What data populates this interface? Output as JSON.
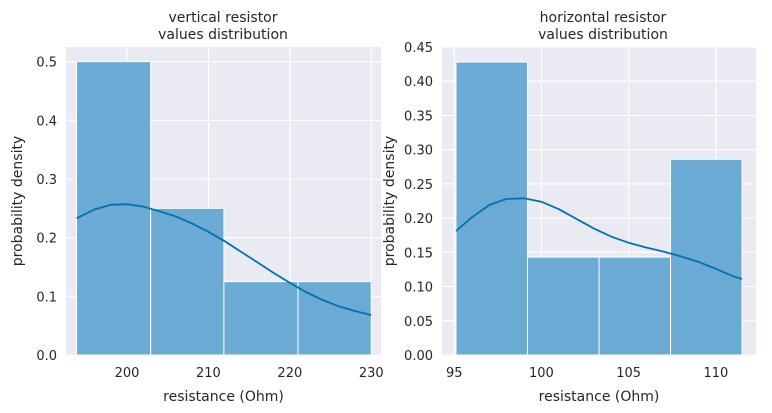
{
  "chart_data": [
    {
      "type": "bar",
      "title": [
        "vertical resistor",
        "values distribution"
      ],
      "xlabel": "resistance (Ohm)",
      "ylabel": "probability density",
      "xlim": [
        192.5,
        231.2
      ],
      "ylim": [
        0,
        0.525
      ],
      "xticks": [
        200,
        210,
        220,
        230
      ],
      "yticks": [
        0.0,
        0.1,
        0.2,
        0.3,
        0.4,
        0.5
      ],
      "ytick_labels": [
        "0.0",
        "0.1",
        "0.2",
        "0.3",
        "0.4",
        "0.5"
      ],
      "bins": [
        {
          "x0": 193.8,
          "x1": 202.9,
          "value": 0.5
        },
        {
          "x0": 202.9,
          "x1": 211.9,
          "value": 0.25
        },
        {
          "x0": 211.9,
          "x1": 221.0,
          "value": 0.125
        },
        {
          "x0": 221.0,
          "x1": 230.0,
          "value": 0.125
        }
      ],
      "kde": {
        "x": [
          193.8,
          196,
          198,
          200,
          202,
          204,
          206,
          208,
          210,
          212,
          214,
          216,
          218,
          220,
          222,
          224,
          226,
          228,
          230
        ],
        "y": [
          0.233,
          0.248,
          0.256,
          0.257,
          0.253,
          0.245,
          0.236,
          0.224,
          0.21,
          0.194,
          0.176,
          0.158,
          0.14,
          0.123,
          0.107,
          0.094,
          0.083,
          0.075,
          0.068
        ]
      },
      "grid": true,
      "colors": {
        "bar": "#6aaad3",
        "bar_edge": "#ffffff",
        "kde": "#0072b2",
        "background": "#eaeaf2",
        "grid": "#ffffff"
      }
    },
    {
      "type": "bar",
      "title": [
        "horizontal resistor",
        "values distribution"
      ],
      "xlabel": "resistance (Ohm)",
      "ylabel": "probability density",
      "xlim": [
        94.3,
        112.3
      ],
      "ylim": [
        0,
        0.45
      ],
      "xticks": [
        95,
        100,
        105,
        110
      ],
      "yticks": [
        0.0,
        0.05,
        0.1,
        0.15,
        0.2,
        0.25,
        0.3,
        0.35,
        0.4,
        0.45
      ],
      "ytick_labels": [
        "0.00",
        "0.05",
        "0.10",
        "0.15",
        "0.20",
        "0.25",
        "0.30",
        "0.35",
        "0.40",
        "0.45"
      ],
      "bins": [
        {
          "x0": 95.1,
          "x1": 99.2,
          "value": 0.428
        },
        {
          "x0": 99.2,
          "x1": 103.3,
          "value": 0.143
        },
        {
          "x0": 103.3,
          "x1": 107.4,
          "value": 0.143
        },
        {
          "x0": 107.4,
          "x1": 111.5,
          "value": 0.286
        }
      ],
      "kde": {
        "x": [
          95.1,
          96,
          97,
          98,
          99,
          100,
          101,
          102,
          103,
          104,
          105,
          106,
          107,
          108,
          109,
          110,
          111,
          111.5
        ],
        "y": [
          0.181,
          0.201,
          0.219,
          0.228,
          0.229,
          0.224,
          0.213,
          0.199,
          0.185,
          0.173,
          0.164,
          0.157,
          0.151,
          0.144,
          0.136,
          0.126,
          0.115,
          0.111
        ]
      },
      "grid": true,
      "colors": {
        "bar": "#6aaad3",
        "bar_edge": "#ffffff",
        "kde": "#0072b2",
        "background": "#eaeaf2",
        "grid": "#ffffff"
      }
    }
  ]
}
